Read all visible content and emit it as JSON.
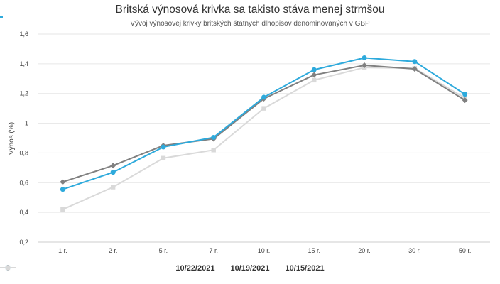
{
  "chart_data": {
    "type": "line",
    "title": "Britská výnosová krivka sa takisto stáva menej strmšou",
    "subtitle": "Vývoj výnosovej krivky britských štátnych dlhopisov denominovaných v GBP",
    "xlabel": "",
    "ylabel": "Výnos (%)",
    "ylim": [
      0.2,
      1.6
    ],
    "yticks": [
      "0,2",
      "0,4",
      "0,6",
      "0,8",
      "1",
      "1,2",
      "1,4",
      "1,6"
    ],
    "ytick_values": [
      0.2,
      0.4,
      0.6,
      0.8,
      1.0,
      1.2,
      1.4,
      1.6
    ],
    "categories": [
      "1 r.",
      "2 r.",
      "5 r.",
      "7 r.",
      "10 r.",
      "15 r.",
      "20 r.",
      "30 r.",
      "50 r."
    ],
    "grid": "horizontal",
    "legend_position": "bottom",
    "series": [
      {
        "name": "10/15/2021",
        "color": "#d9d9d9",
        "marker": "square",
        "values": [
          0.42,
          0.57,
          0.765,
          0.82,
          1.1,
          1.29,
          1.375,
          1.37,
          1.17
        ]
      },
      {
        "name": "10/19/2021",
        "color": "#808080",
        "marker": "diamond",
        "values": [
          0.605,
          0.715,
          0.85,
          0.895,
          1.165,
          1.325,
          1.39,
          1.365,
          1.155
        ]
      },
      {
        "name": "10/22/2021",
        "color": "#2eaadc",
        "marker": "circle",
        "values": [
          0.555,
          0.67,
          0.84,
          0.905,
          1.175,
          1.36,
          1.44,
          1.415,
          1.195
        ]
      }
    ],
    "legend_order": [
      "10/22/2021",
      "10/19/2021",
      "10/15/2021"
    ]
  }
}
